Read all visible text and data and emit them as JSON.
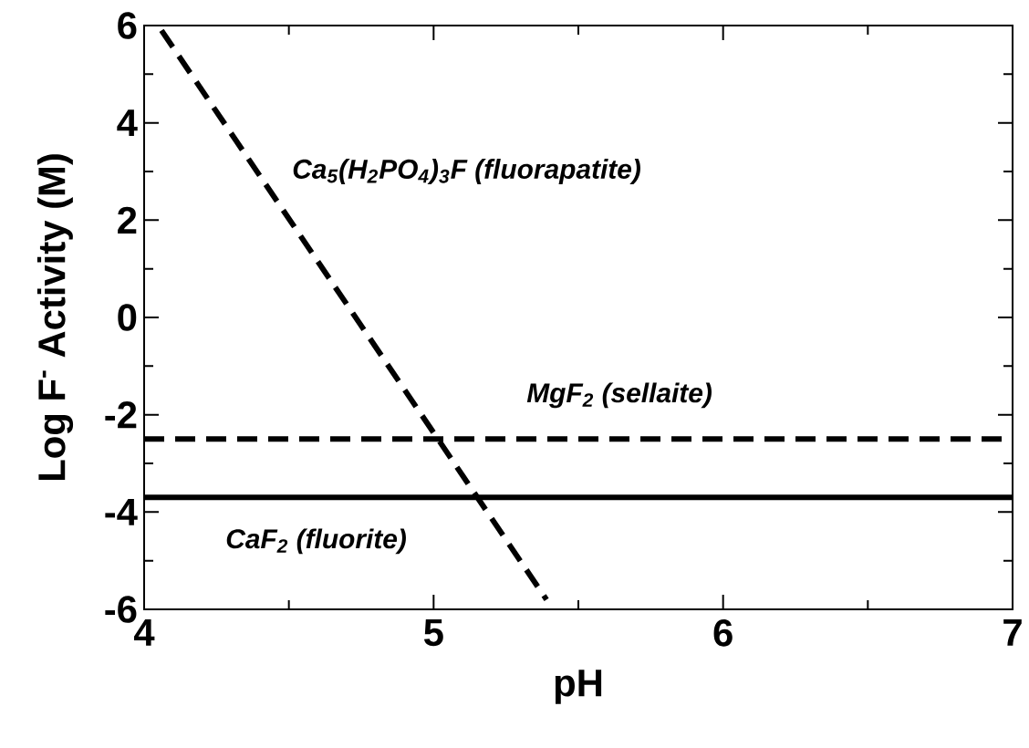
{
  "chart_data": {
    "type": "line",
    "xlabel": "pH",
    "ylabel": "Log F$^{-}$ Activity (M)",
    "xlim": [
      4,
      7
    ],
    "ylim": [
      -6,
      6
    ],
    "xticks": [
      4,
      5,
      6,
      7
    ],
    "yticks": [
      -6,
      -4,
      -2,
      0,
      2,
      4,
      6
    ],
    "marker": "none",
    "series": [
      {
        "color": "#000000",
        "line_style": "dashed",
        "x": [
          4.06,
          5.39
        ],
        "values": [
          5.9,
          -5.8
        ]
      },
      {
        "color": "#000000",
        "line_style": "dashed",
        "x": [
          4,
          7
        ],
        "values": [
          -2.5,
          -2.5
        ]
      },
      {
        "color": "#000000",
        "line_style": "solid",
        "x": [
          4,
          7
        ],
        "values": [
          -3.7,
          -3.7
        ]
      }
    ],
    "annotations": [
      "Ca$_{5}$(H$_{2}$PO$_{4}$)$_{3}$F (fluorapatite)",
      "MgF$_{2}$ (sellaite)",
      "CaF$_{2}$ (fluorite)"
    ]
  }
}
